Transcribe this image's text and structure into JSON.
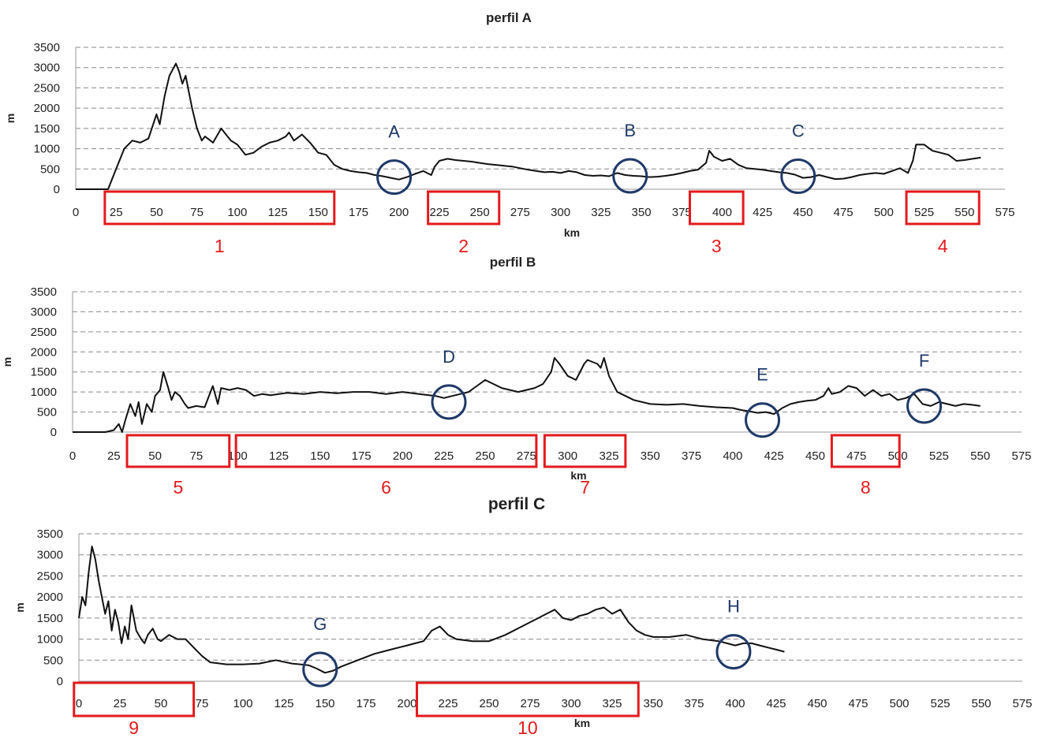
{
  "chart_data": [
    {
      "type": "line",
      "title": "perfil A",
      "xlabel": "km",
      "ylabel": "m",
      "xlim": [
        0,
        575
      ],
      "ylim": [
        0,
        3500
      ],
      "xticks": [
        0,
        25,
        50,
        75,
        100,
        125,
        150,
        175,
        200,
        225,
        250,
        275,
        300,
        325,
        350,
        375,
        400,
        425,
        450,
        475,
        500,
        525,
        550,
        575
      ],
      "yticks": [
        0,
        500,
        1000,
        1500,
        2000,
        2500,
        3000,
        3500
      ],
      "grid": "horizontal dashed",
      "series": [
        {
          "x": [
            0,
            20,
            25,
            30,
            35,
            40,
            45,
            50,
            52,
            55,
            58,
            60,
            62,
            64,
            66,
            68,
            70,
            72,
            75,
            78,
            80,
            85,
            90,
            93,
            96,
            100,
            105,
            110,
            115,
            120,
            125,
            130,
            132,
            135,
            140,
            145,
            150,
            155,
            160,
            165,
            170,
            175,
            180,
            185,
            190,
            195,
            200,
            205,
            210,
            215,
            220,
            222,
            225,
            230,
            235,
            240,
            245,
            250,
            255,
            260,
            265,
            270,
            275,
            280,
            285,
            290,
            295,
            300,
            305,
            310,
            315,
            320,
            325,
            330,
            335,
            340,
            345,
            350,
            355,
            360,
            365,
            370,
            375,
            380,
            385,
            390,
            392,
            395,
            400,
            405,
            410,
            415,
            420,
            425,
            430,
            435,
            440,
            445,
            450,
            455,
            460,
            465,
            470,
            475,
            480,
            485,
            490,
            495,
            500,
            505,
            510,
            515,
            518,
            520,
            525,
            530,
            535,
            540,
            545,
            550,
            555,
            560
          ],
          "values": [
            0,
            0,
            500,
            1000,
            1200,
            1150,
            1250,
            1850,
            1600,
            2300,
            2800,
            2950,
            3100,
            2900,
            2600,
            2800,
            2400,
            2000,
            1500,
            1200,
            1300,
            1150,
            1500,
            1350,
            1200,
            1100,
            850,
            900,
            1050,
            1150,
            1200,
            1300,
            1400,
            1200,
            1350,
            1150,
            900,
            850,
            600,
            500,
            450,
            420,
            400,
            350,
            320,
            280,
            240,
            300,
            380,
            450,
            350,
            550,
            700,
            750,
            720,
            700,
            680,
            650,
            620,
            600,
            580,
            560,
            520,
            480,
            450,
            420,
            430,
            400,
            450,
            420,
            350,
            330,
            340,
            320,
            400,
            350,
            330,
            320,
            300,
            310,
            330,
            360,
            400,
            450,
            480,
            650,
            950,
            800,
            700,
            750,
            600,
            520,
            500,
            480,
            450,
            420,
            400,
            360,
            280,
            300,
            350,
            300,
            250,
            260,
            300,
            350,
            380,
            400,
            380,
            450,
            520,
            400,
            700,
            1100,
            1100,
            950,
            900,
            850,
            700,
            720,
            750,
            780
          ]
        }
      ],
      "annotations": {
        "circles": [
          {
            "label": "A",
            "x": 197,
            "y": 300
          },
          {
            "label": "B",
            "x": 343,
            "y": 330
          },
          {
            "label": "C",
            "x": 447,
            "y": 320
          }
        ],
        "boxes": [
          {
            "label": "1",
            "x_start": 18,
            "x_end": 160
          },
          {
            "label": "2",
            "x_start": 218,
            "x_end": 262
          },
          {
            "label": "3",
            "x_start": 380,
            "x_end": 413
          },
          {
            "label": "4",
            "x_start": 514,
            "x_end": 559
          }
        ]
      }
    },
    {
      "type": "line",
      "title": "perfil B",
      "xlabel": "km",
      "ylabel": "m",
      "xlim": [
        0,
        575
      ],
      "ylim": [
        0,
        3500
      ],
      "xticks": [
        0,
        25,
        50,
        75,
        100,
        125,
        150,
        175,
        200,
        225,
        250,
        275,
        300,
        325,
        350,
        375,
        400,
        425,
        450,
        475,
        500,
        525,
        550,
        575
      ],
      "yticks": [
        0,
        500,
        1000,
        1500,
        2000,
        2500,
        3000,
        3500
      ],
      "grid": "horizontal dashed",
      "series": [
        {
          "x": [
            0,
            20,
            25,
            28,
            30,
            32,
            35,
            38,
            40,
            42,
            45,
            48,
            50,
            53,
            55,
            58,
            60,
            62,
            65,
            68,
            70,
            75,
            80,
            85,
            88,
            90,
            95,
            100,
            105,
            110,
            115,
            120,
            130,
            140,
            150,
            160,
            170,
            180,
            190,
            200,
            210,
            220,
            225,
            230,
            235,
            240,
            245,
            250,
            255,
            260,
            265,
            270,
            275,
            280,
            285,
            290,
            292,
            295,
            300,
            305,
            310,
            312,
            315,
            318,
            320,
            322,
            325,
            330,
            335,
            340,
            350,
            360,
            370,
            380,
            390,
            400,
            405,
            410,
            415,
            420,
            425,
            430,
            435,
            440,
            445,
            450,
            455,
            458,
            460,
            465,
            470,
            475,
            480,
            485,
            490,
            495,
            500,
            505,
            510,
            515,
            520,
            525,
            530,
            535,
            540,
            545,
            550
          ],
          "values": [
            0,
            0,
            50,
            200,
            0,
            300,
            700,
            400,
            750,
            200,
            700,
            500,
            900,
            1050,
            1500,
            1100,
            800,
            1000,
            900,
            700,
            600,
            650,
            620,
            1150,
            700,
            1100,
            1050,
            1100,
            1050,
            900,
            950,
            920,
            980,
            950,
            1000,
            970,
            1000,
            1000,
            950,
            1000,
            950,
            900,
            850,
            900,
            950,
            1000,
            1150,
            1300,
            1200,
            1100,
            1050,
            1000,
            1050,
            1100,
            1200,
            1500,
            1850,
            1700,
            1400,
            1300,
            1700,
            1800,
            1750,
            1700,
            1600,
            1850,
            1400,
            1000,
            900,
            800,
            700,
            680,
            700,
            650,
            620,
            600,
            550,
            520,
            480,
            500,
            450,
            600,
            700,
            750,
            780,
            800,
            900,
            1100,
            950,
            1000,
            1150,
            1100,
            900,
            1050,
            900,
            950,
            800,
            850,
            950,
            700,
            650,
            750,
            700,
            650,
            700,
            680,
            650
          ]
        }
      ],
      "annotations": {
        "circles": [
          {
            "label": "D",
            "x": 228,
            "y": 750
          },
          {
            "label": "E",
            "x": 418,
            "y": 300
          },
          {
            "label": "F",
            "x": 516,
            "y": 650
          }
        ],
        "boxes": [
          {
            "label": "5",
            "x_start": 33,
            "x_end": 95
          },
          {
            "label": "6",
            "x_start": 99,
            "x_end": 281
          },
          {
            "label": "7",
            "x_start": 286,
            "x_end": 335
          },
          {
            "label": "8",
            "x_start": 460,
            "x_end": 501
          }
        ]
      }
    },
    {
      "type": "line",
      "title": "perfil C",
      "xlabel": "km",
      "ylabel": "m",
      "xlim": [
        0,
        575
      ],
      "ylim": [
        0,
        3500
      ],
      "xticks": [
        0,
        25,
        50,
        75,
        100,
        125,
        150,
        175,
        200,
        225,
        250,
        275,
        300,
        325,
        350,
        375,
        400,
        425,
        450,
        475,
        500,
        525,
        550,
        575
      ],
      "yticks": [
        0,
        500,
        1000,
        1500,
        2000,
        2500,
        3000,
        3500
      ],
      "grid": "horizontal dashed",
      "series": [
        {
          "x": [
            0,
            2,
            4,
            6,
            8,
            10,
            12,
            14,
            16,
            18,
            20,
            22,
            24,
            26,
            28,
            30,
            32,
            35,
            38,
            40,
            42,
            45,
            48,
            50,
            55,
            60,
            65,
            70,
            75,
            80,
            90,
            100,
            110,
            120,
            130,
            140,
            145,
            150,
            155,
            160,
            170,
            180,
            190,
            200,
            205,
            210,
            215,
            220,
            225,
            230,
            240,
            250,
            260,
            270,
            280,
            285,
            290,
            295,
            300,
            305,
            310,
            315,
            320,
            325,
            330,
            335,
            340,
            345,
            350,
            360,
            370,
            380,
            390,
            395,
            400,
            405,
            410,
            415,
            420,
            425,
            430
          ],
          "values": [
            1500,
            2000,
            1800,
            2600,
            3200,
            2900,
            2400,
            2000,
            1600,
            1900,
            1200,
            1700,
            1400,
            900,
            1300,
            1000,
            1800,
            1200,
            1000,
            900,
            1100,
            1250,
            1000,
            950,
            1100,
            1000,
            1000,
            800,
            600,
            450,
            400,
            400,
            420,
            500,
            420,
            380,
            300,
            200,
            250,
            350,
            500,
            650,
            750,
            850,
            900,
            950,
            1200,
            1300,
            1100,
            1000,
            950,
            950,
            1100,
            1300,
            1500,
            1600,
            1700,
            1500,
            1450,
            1550,
            1600,
            1700,
            1750,
            1600,
            1700,
            1400,
            1200,
            1100,
            1050,
            1050,
            1100,
            1000,
            950,
            900,
            850,
            900,
            900,
            850,
            800,
            750,
            700
          ]
        }
      ],
      "annotations": {
        "circles": [
          {
            "label": "G",
            "x": 147,
            "y": 280
          },
          {
            "label": "H",
            "x": 399,
            "y": 700
          }
        ],
        "boxes": [
          {
            "label": "9",
            "x_start": -3,
            "x_end": 70
          },
          {
            "label": "10",
            "x_start": 206,
            "x_end": 341
          }
        ]
      }
    }
  ]
}
